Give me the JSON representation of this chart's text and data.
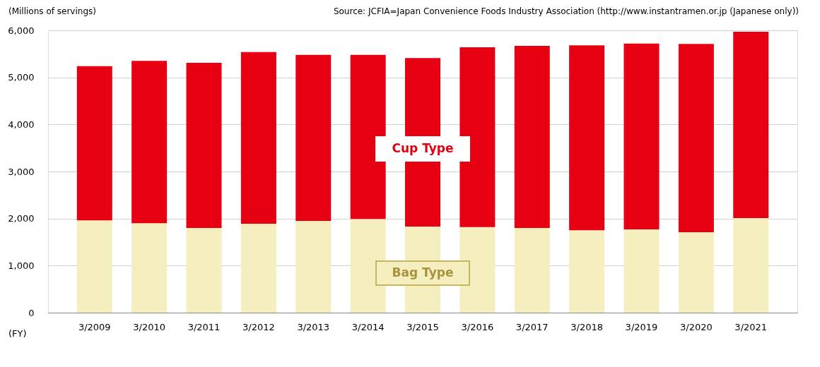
{
  "chart_data": {
    "type": "bar",
    "stacked": true,
    "ylabel": "(Millions of servings)",
    "xlabel": "(FY)",
    "annotations": [
      "Source: JCFIA=Japan Convenience Foods Industry Association (http://www.instantramen.or.jp (Japanese only))"
    ],
    "categories": [
      "3/2009",
      "3/2010",
      "3/2011",
      "3/2012",
      "3/2013",
      "3/2014",
      "3/2015",
      "3/2016",
      "3/2017",
      "3/2018",
      "3/2019",
      "3/2020",
      "3/2021"
    ],
    "series": [
      {
        "name": "Bag Type",
        "color": "#f5eebe",
        "values": [
          1960,
          1900,
          1800,
          1890,
          1950,
          1990,
          1830,
          1820,
          1800,
          1750,
          1770,
          1710,
          2010
        ]
      },
      {
        "name": "Cup Type",
        "color": "#e60012",
        "values": [
          3280,
          3450,
          3510,
          3650,
          3530,
          3490,
          3580,
          3820,
          3870,
          3930,
          3950,
          4000,
          3960
        ]
      }
    ],
    "ylim": [
      0,
      6000
    ],
    "yticks": [
      0,
      {
        "value": 1000,
        "label": "1,000"
      },
      {
        "value": 2000,
        "label": "2,000"
      },
      {
        "value": 3000,
        "label": "3,000"
      },
      {
        "value": 4000,
        "label": "4,000"
      },
      {
        "value": 5000,
        "label": "5,000"
      },
      {
        "value": 6000,
        "label": "6,000"
      }
    ],
    "grid": "y",
    "legend": false
  }
}
